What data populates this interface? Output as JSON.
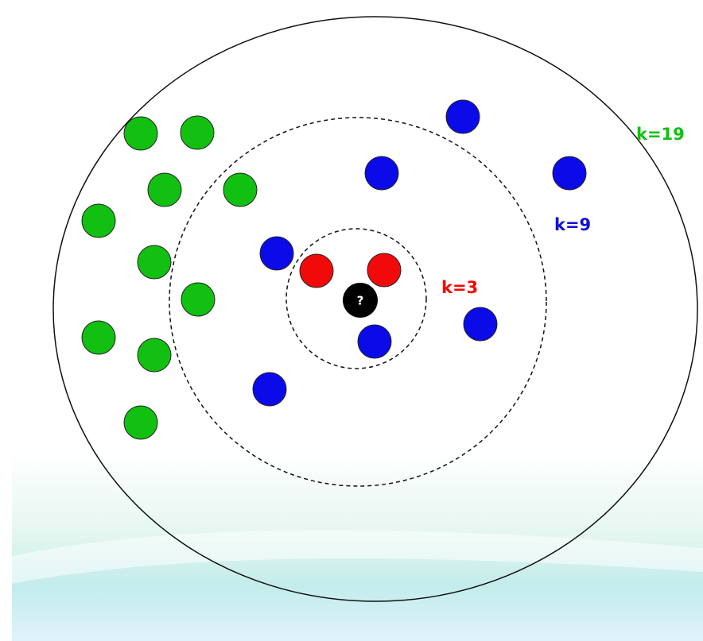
{
  "labels": {
    "k19": "k=19",
    "k9": "k=9",
    "k3": "k=3"
  },
  "query": "?"
}
